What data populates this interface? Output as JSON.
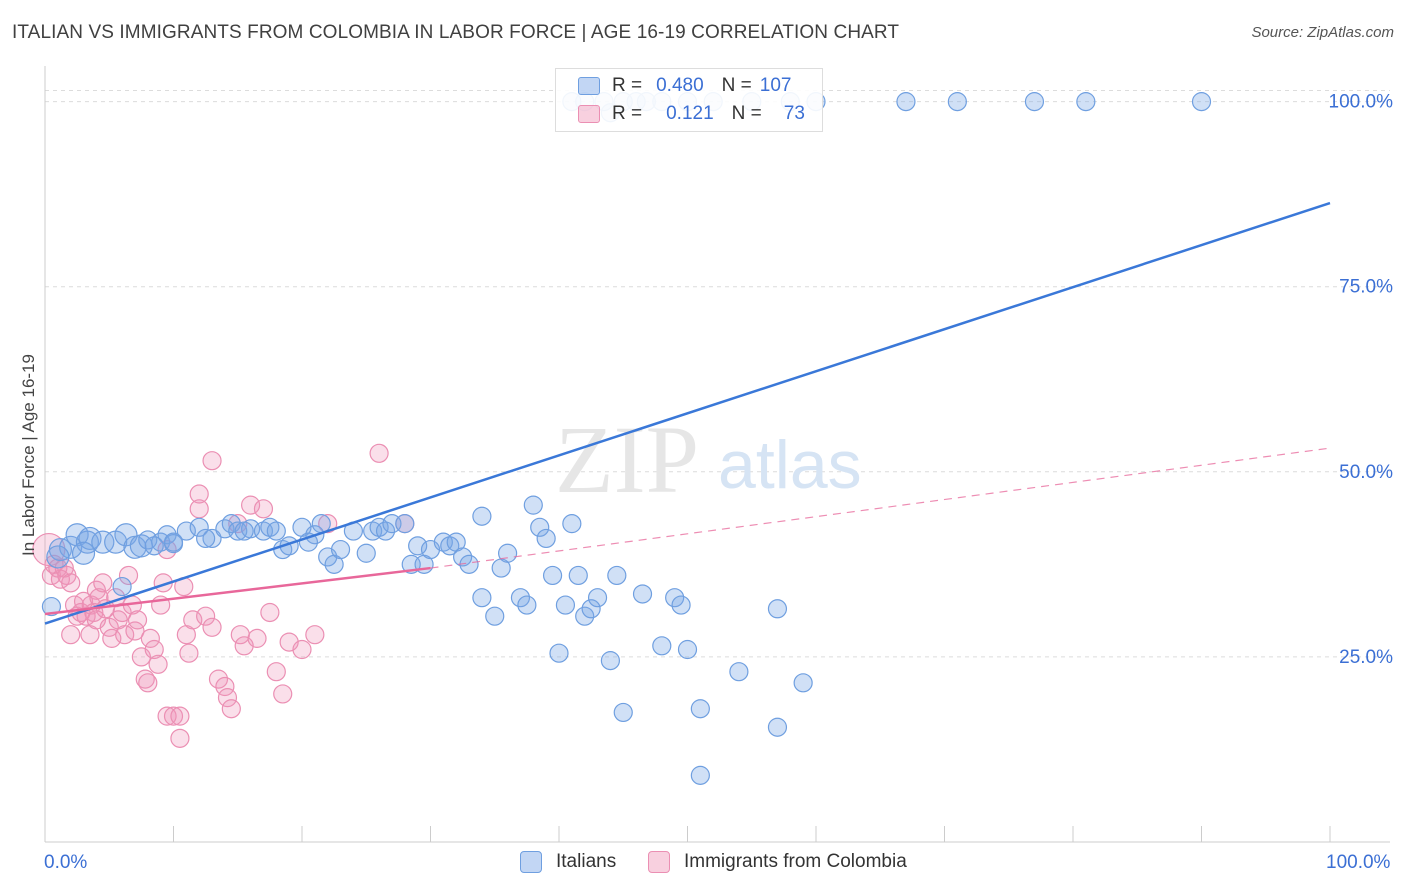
{
  "title": "ITALIAN VS IMMIGRANTS FROM COLOMBIA IN LABOR FORCE | AGE 16-19 CORRELATION CHART",
  "source": "Source: ZipAtlas.com",
  "watermark": {
    "zip": "ZIP",
    "atlas": "atlas"
  },
  "colors": {
    "blue": "#3a78d8",
    "blue_fill": "rgba(120,165,230,0.35)",
    "blue_stroke": "#6f9fe0",
    "pink": "#e8679a",
    "pink_fill": "rgba(240,150,185,0.3)",
    "pink_stroke": "#eb8fb3",
    "axis_label": "#3b6fd4",
    "grid": "#dcdcdc"
  },
  "legend": {
    "r_label": "R =",
    "n_label": "N =",
    "rows": [
      {
        "series": "Italians",
        "r": "0.480",
        "n": "107"
      },
      {
        "series": "Immigrants from Colombia",
        "r": "0.121",
        "n": "73"
      }
    ]
  },
  "chart_data": {
    "type": "scatter",
    "title": "ITALIAN VS IMMIGRANTS FROM COLOMBIA IN LABOR FORCE | AGE 16-19 CORRELATION CHART",
    "xlabel": "",
    "ylabel": "In Labor Force | Age 16-19",
    "xlim": [
      0,
      100
    ],
    "ylim": [
      0,
      104
    ],
    "x_tick_labels": [
      "0.0%",
      "100.0%"
    ],
    "y_ticks": [
      25,
      50,
      75,
      100
    ],
    "y_tick_labels": [
      "25.0%",
      "50.0%",
      "75.0%",
      "100.0%"
    ],
    "grid": true,
    "legend_position": "bottom-center",
    "series": [
      {
        "name": "Italians",
        "color": "#3a78d8",
        "trend": {
          "x": [
            0,
            100
          ],
          "y": [
            29.5,
            86.3
          ],
          "style": "solid"
        },
        "points": [
          [
            0.5,
            31.8
          ],
          [
            1.2,
            39.5
          ],
          [
            2,
            39.8
          ],
          [
            2.5,
            41.5
          ],
          [
            3.3,
            40.5
          ],
          [
            3.5,
            41
          ],
          [
            4.5,
            40.5
          ],
          [
            5.5,
            40.5
          ],
          [
            6.3,
            41.5
          ],
          [
            7,
            39.8
          ],
          [
            7.5,
            40
          ],
          [
            8,
            40.8
          ],
          [
            9,
            40.5
          ],
          [
            9.5,
            41.5
          ],
          [
            10,
            40.3
          ],
          [
            11,
            42
          ],
          [
            12,
            42.5
          ],
          [
            13,
            41
          ],
          [
            14,
            42.3
          ],
          [
            14.5,
            43
          ],
          [
            15,
            42
          ],
          [
            16,
            42.3
          ],
          [
            17,
            42
          ],
          [
            17.5,
            42.5
          ],
          [
            18,
            42
          ],
          [
            18.5,
            39.5
          ],
          [
            19,
            40
          ],
          [
            20,
            42.5
          ],
          [
            21,
            41.5
          ],
          [
            21.5,
            43
          ],
          [
            22,
            38.5
          ],
          [
            22.5,
            37.5
          ],
          [
            23,
            39.5
          ],
          [
            24,
            42
          ],
          [
            25,
            39
          ],
          [
            25.5,
            42
          ],
          [
            26,
            42.5
          ],
          [
            26.5,
            42
          ],
          [
            27,
            43
          ],
          [
            28,
            43
          ],
          [
            28.5,
            37.5
          ],
          [
            29,
            40
          ],
          [
            29.5,
            37.5
          ],
          [
            30,
            39.5
          ],
          [
            31,
            40.5
          ],
          [
            31.5,
            40
          ],
          [
            32,
            40.5
          ],
          [
            32.5,
            38.5
          ],
          [
            33,
            37.5
          ],
          [
            34,
            44
          ],
          [
            34,
            33
          ],
          [
            35,
            30.5
          ],
          [
            35.5,
            37
          ],
          [
            36,
            39
          ],
          [
            37,
            33
          ],
          [
            37.5,
            32
          ],
          [
            38,
            45.5
          ],
          [
            38.5,
            42.5
          ],
          [
            39,
            41
          ],
          [
            39.5,
            36
          ],
          [
            40,
            25.5
          ],
          [
            40.5,
            32
          ],
          [
            41,
            43
          ],
          [
            41.5,
            36
          ],
          [
            42,
            30.5
          ],
          [
            42.5,
            31.5
          ],
          [
            43,
            33
          ],
          [
            44,
            24.5
          ],
          [
            44.5,
            36
          ],
          [
            45,
            17.5
          ],
          [
            46.5,
            33.5
          ],
          [
            48,
            26.5
          ],
          [
            49,
            33
          ],
          [
            49.5,
            32
          ],
          [
            50,
            26
          ],
          [
            51,
            9
          ],
          [
            51,
            18
          ],
          [
            54,
            23
          ],
          [
            57,
            15.5
          ],
          [
            57,
            31.5
          ],
          [
            59,
            21.5
          ],
          [
            41,
            100
          ],
          [
            42,
            100
          ],
          [
            43.5,
            100
          ],
          [
            44,
            98.5
          ],
          [
            45,
            100
          ],
          [
            46,
            100
          ],
          [
            46.8,
            100
          ],
          [
            48,
            100
          ],
          [
            50,
            100
          ],
          [
            52,
            100
          ],
          [
            55,
            100
          ],
          [
            58,
            100
          ],
          [
            60,
            100
          ],
          [
            67,
            100
          ],
          [
            71,
            100
          ],
          [
            77,
            100
          ],
          [
            81,
            100
          ],
          [
            90,
            100
          ],
          [
            10,
            40.5
          ],
          [
            8.5,
            40
          ],
          [
            15.5,
            42
          ],
          [
            20.5,
            40.5
          ],
          [
            12.5,
            41
          ],
          [
            1,
            38.5
          ],
          [
            3,
            39
          ],
          [
            6,
            34.5
          ]
        ]
      },
      {
        "name": "Immigrants from Colombia",
        "color": "#e8679a",
        "trend": {
          "x": [
            0,
            30
          ],
          "y": [
            30.8,
            37
          ],
          "style": "solid",
          "extended": {
            "x": [
              30,
              100
            ],
            "y": [
              37,
              53.2
            ]
          }
        },
        "points": [
          [
            0.3,
            39.5
          ],
          [
            0.5,
            36
          ],
          [
            0.7,
            37.5
          ],
          [
            1,
            37
          ],
          [
            1.2,
            35.5
          ],
          [
            1.5,
            37
          ],
          [
            1.7,
            36
          ],
          [
            2,
            35
          ],
          [
            2,
            28
          ],
          [
            2.3,
            32
          ],
          [
            2.5,
            30.5
          ],
          [
            2.8,
            31
          ],
          [
            3,
            32.5
          ],
          [
            3.2,
            30.5
          ],
          [
            3.5,
            28
          ],
          [
            3.6,
            32
          ],
          [
            3.8,
            31
          ],
          [
            4,
            34
          ],
          [
            4.2,
            33
          ],
          [
            4.5,
            35
          ],
          [
            4.7,
            31.5
          ],
          [
            5,
            29
          ],
          [
            5.2,
            27.5
          ],
          [
            5.5,
            33
          ],
          [
            5.7,
            30
          ],
          [
            6,
            31
          ],
          [
            6.2,
            28
          ],
          [
            6.5,
            36
          ],
          [
            6.8,
            32
          ],
          [
            7,
            28.5
          ],
          [
            7.2,
            30
          ],
          [
            7.5,
            25
          ],
          [
            7.8,
            22
          ],
          [
            8,
            21.5
          ],
          [
            8.2,
            27.5
          ],
          [
            8.5,
            26
          ],
          [
            8.8,
            24
          ],
          [
            9,
            32
          ],
          [
            9.2,
            35
          ],
          [
            9.5,
            39.5
          ],
          [
            9.5,
            17
          ],
          [
            10,
            17
          ],
          [
            10.5,
            14
          ],
          [
            10.5,
            17
          ],
          [
            10.8,
            34.5
          ],
          [
            11,
            28
          ],
          [
            11.2,
            25.5
          ],
          [
            11.5,
            30
          ],
          [
            12,
            45
          ],
          [
            12,
            47
          ],
          [
            12.5,
            30.5
          ],
          [
            13,
            29
          ],
          [
            13.5,
            22
          ],
          [
            14,
            21
          ],
          [
            14.2,
            19.5
          ],
          [
            14.5,
            18
          ],
          [
            15,
            43
          ],
          [
            15.2,
            28
          ],
          [
            15.5,
            26.5
          ],
          [
            16,
            45.5
          ],
          [
            16.5,
            27.5
          ],
          [
            17,
            45
          ],
          [
            17.5,
            31
          ],
          [
            18,
            23
          ],
          [
            18.5,
            20
          ],
          [
            19,
            27
          ],
          [
            20,
            26
          ],
          [
            21,
            28
          ],
          [
            22,
            43
          ],
          [
            26,
            52.5
          ],
          [
            28,
            43
          ],
          [
            13,
            51.5
          ],
          [
            4,
            30
          ]
        ]
      }
    ]
  }
}
